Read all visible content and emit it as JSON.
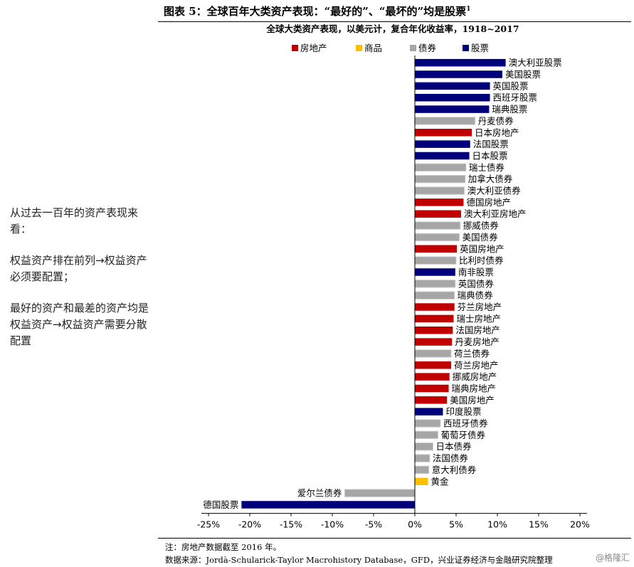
{
  "header": {
    "title": "图表 5：全球百年大类资产表现：“最好的”、“最坏的”均是股票",
    "title_sup": "1"
  },
  "sidebar": {
    "paragraphs": [
      "从过去一百年的资产表现来看：",
      "权益资产排在前列→权益资产必须要配置；",
      "最好的资产和最差的资产均是权益资产→权益资产需要分散配置"
    ]
  },
  "footer": {
    "note": "注：房地产数据截至 2016 年。",
    "source": "数据来源：Jordà-Schularick-Taylor Macrohistory Database，GFD，兴业证券经济与金融研究院整理"
  },
  "watermark": "@格隆汇",
  "chart_data": {
    "type": "bar",
    "orientation": "horizontal",
    "title": "全球大类资产表现，以美元计，复合年化收益率，1918~2017",
    "xlim": [
      -0.25,
      0.2
    ],
    "xticks": [
      -0.25,
      -0.2,
      -0.15,
      -0.1,
      -0.05,
      0,
      0.05,
      0.1,
      0.15,
      0.2
    ],
    "xtick_labels": [
      "-25%",
      "-20%",
      "-15%",
      "-10%",
      "-5%",
      "0%",
      "5%",
      "10%",
      "15%",
      "20%"
    ],
    "legend_position": "top",
    "legend": [
      {
        "name": "房地产",
        "color": "#c00000"
      },
      {
        "name": "商品",
        "color": "#ffc000"
      },
      {
        "name": "债券",
        "color": "#a6a6a6"
      },
      {
        "name": "股票",
        "color": "#00007a"
      }
    ],
    "bars": [
      {
        "label": "澳大利亚股票",
        "value": 0.11,
        "type": "股票"
      },
      {
        "label": "美国股票",
        "value": 0.106,
        "type": "股票"
      },
      {
        "label": "英国股票",
        "value": 0.091,
        "type": "股票"
      },
      {
        "label": "西班牙股票",
        "value": 0.091,
        "type": "股票"
      },
      {
        "label": "瑞典股票",
        "value": 0.09,
        "type": "股票"
      },
      {
        "label": "丹麦债券",
        "value": 0.073,
        "type": "债券"
      },
      {
        "label": "日本房地产",
        "value": 0.069,
        "type": "房地产"
      },
      {
        "label": "法国股票",
        "value": 0.067,
        "type": "股票"
      },
      {
        "label": "日本股票",
        "value": 0.066,
        "type": "股票"
      },
      {
        "label": "瑞士债券",
        "value": 0.062,
        "type": "债券"
      },
      {
        "label": "加拿大债券",
        "value": 0.061,
        "type": "债券"
      },
      {
        "label": "澳大利亚债券",
        "value": 0.06,
        "type": "债券"
      },
      {
        "label": "德国房地产",
        "value": 0.059,
        "type": "房地产"
      },
      {
        "label": "澳大利亚房地产",
        "value": 0.056,
        "type": "房地产"
      },
      {
        "label": "挪威债券",
        "value": 0.055,
        "type": "债券"
      },
      {
        "label": "美国债券",
        "value": 0.054,
        "type": "债券"
      },
      {
        "label": "英国房地产",
        "value": 0.051,
        "type": "房地产"
      },
      {
        "label": "比利时债券",
        "value": 0.05,
        "type": "债券"
      },
      {
        "label": "南非股票",
        "value": 0.049,
        "type": "股票"
      },
      {
        "label": "英国债券",
        "value": 0.049,
        "type": "债券"
      },
      {
        "label": "瑞典债券",
        "value": 0.048,
        "type": "债券"
      },
      {
        "label": "芬兰房地产",
        "value": 0.048,
        "type": "房地产"
      },
      {
        "label": "瑞士房地产",
        "value": 0.047,
        "type": "房地产"
      },
      {
        "label": "法国房地产",
        "value": 0.046,
        "type": "房地产"
      },
      {
        "label": "丹麦房地产",
        "value": 0.045,
        "type": "房地产"
      },
      {
        "label": "荷兰债券",
        "value": 0.044,
        "type": "债券"
      },
      {
        "label": "荷兰房地产",
        "value": 0.044,
        "type": "房地产"
      },
      {
        "label": "挪威房地产",
        "value": 0.042,
        "type": "房地产"
      },
      {
        "label": "瑞典房地产",
        "value": 0.041,
        "type": "房地产"
      },
      {
        "label": "美国房地产",
        "value": 0.039,
        "type": "房地产"
      },
      {
        "label": "印度股票",
        "value": 0.034,
        "type": "股票"
      },
      {
        "label": "西班牙债券",
        "value": 0.031,
        "type": "债券"
      },
      {
        "label": "葡萄牙债券",
        "value": 0.028,
        "type": "债券"
      },
      {
        "label": "日本债券",
        "value": 0.022,
        "type": "债券"
      },
      {
        "label": "法国债券",
        "value": 0.018,
        "type": "债券"
      },
      {
        "label": "意大利债券",
        "value": 0.017,
        "type": "债券"
      },
      {
        "label": "黄金",
        "value": 0.016,
        "type": "商品"
      },
      {
        "label": "爱尔兰债券",
        "value": -0.085,
        "type": "债券"
      },
      {
        "label": "德国股票",
        "value": -0.21,
        "type": "股票"
      }
    ]
  }
}
